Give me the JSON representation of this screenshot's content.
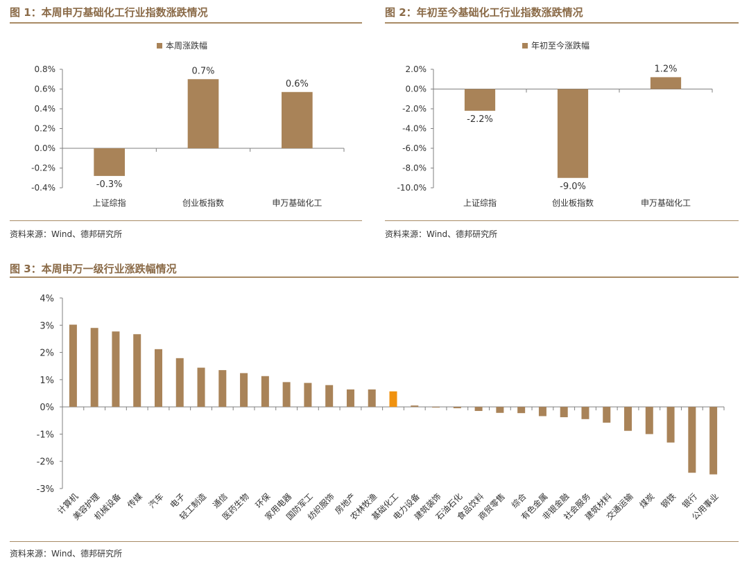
{
  "fig1": {
    "title": "图 1：本周申万基础化工行业指数涨跌情况",
    "source": "资料来源：Wind、德邦研究所"
  },
  "fig2": {
    "title": "图 2：年初至今基础化工行业指数涨跌情况",
    "source": "资料来源：Wind、德邦研究所"
  },
  "fig3": {
    "title": "图 3：本周申万一级行业涨跌幅情况",
    "source": "资料来源：Wind、德邦研究所"
  },
  "colors": {
    "bar": "#a98358",
    "highlight": "#f0920f",
    "title": "#8a6a47",
    "rule": "#a88a64"
  },
  "chart_data": [
    {
      "type": "bar",
      "legend": "本周涨跌幅",
      "legend_position": "top-center",
      "categories": [
        "上证综指",
        "创业板指数",
        "申万基础化工"
      ],
      "values": [
        -0.3,
        0.7,
        0.6
      ],
      "data_labels": [
        "-0.3%",
        "0.7%",
        "0.6%"
      ],
      "ylim": [
        -0.4,
        0.8
      ],
      "yticks": [
        "0.8%",
        "0.6%",
        "0.4%",
        "0.2%",
        "0.0%",
        "-0.2%",
        "-0.4%"
      ],
      "ytick_values": [
        0.8,
        0.6,
        0.4,
        0.2,
        0.0,
        -0.2,
        -0.4
      ],
      "bar_values_read": [
        -0.28,
        0.7,
        0.57
      ],
      "grid": false
    },
    {
      "type": "bar",
      "legend": "年初至今涨跌幅",
      "legend_position": "top-center",
      "categories": [
        "上证综指",
        "创业板指数",
        "申万基础化工"
      ],
      "values": [
        -2.2,
        -9.0,
        1.2
      ],
      "data_labels": [
        "-2.2%",
        "-9.0%",
        "1.2%"
      ],
      "ylim": [
        -10.0,
        2.0
      ],
      "yticks": [
        "2.0%",
        "0.0%",
        "-2.0%",
        "-4.0%",
        "-6.0%",
        "-8.0%",
        "-10.0%"
      ],
      "ytick_values": [
        2.0,
        0.0,
        -2.0,
        -4.0,
        -6.0,
        -8.0,
        -10.0
      ],
      "grid": false
    },
    {
      "type": "bar",
      "categories": [
        "计算机",
        "美容护理",
        "机械设备",
        "传媒",
        "汽车",
        "电子",
        "轻工制造",
        "通信",
        "医药生物",
        "环保",
        "家用电器",
        "国防军工",
        "纺织服饰",
        "房地产",
        "农林牧渔",
        "基础化工",
        "电力设备",
        "建筑装饰",
        "石油石化",
        "食品饮料",
        "商贸零售",
        "综合",
        "有色金属",
        "非银金融",
        "社会服务",
        "建筑材料",
        "交通运输",
        "煤炭",
        "钢铁",
        "银行",
        "公用事业"
      ],
      "values": [
        3.02,
        2.9,
        2.77,
        2.67,
        2.12,
        1.79,
        1.44,
        1.35,
        1.24,
        1.13,
        0.91,
        0.88,
        0.8,
        0.64,
        0.64,
        0.57,
        0.05,
        -0.02,
        -0.05,
        -0.15,
        -0.22,
        -0.23,
        -0.34,
        -0.38,
        -0.45,
        -0.58,
        -0.88,
        -1.0,
        -1.31,
        -2.42,
        -2.48
      ],
      "highlight": "基础化工",
      "ylim": [
        -3,
        4
      ],
      "yticks": [
        "4%",
        "3%",
        "2%",
        "1%",
        "0%",
        "-1%",
        "-2%",
        "-3%"
      ],
      "ytick_values": [
        4,
        3,
        2,
        1,
        0,
        -1,
        -2,
        -3
      ],
      "grid": false
    }
  ]
}
